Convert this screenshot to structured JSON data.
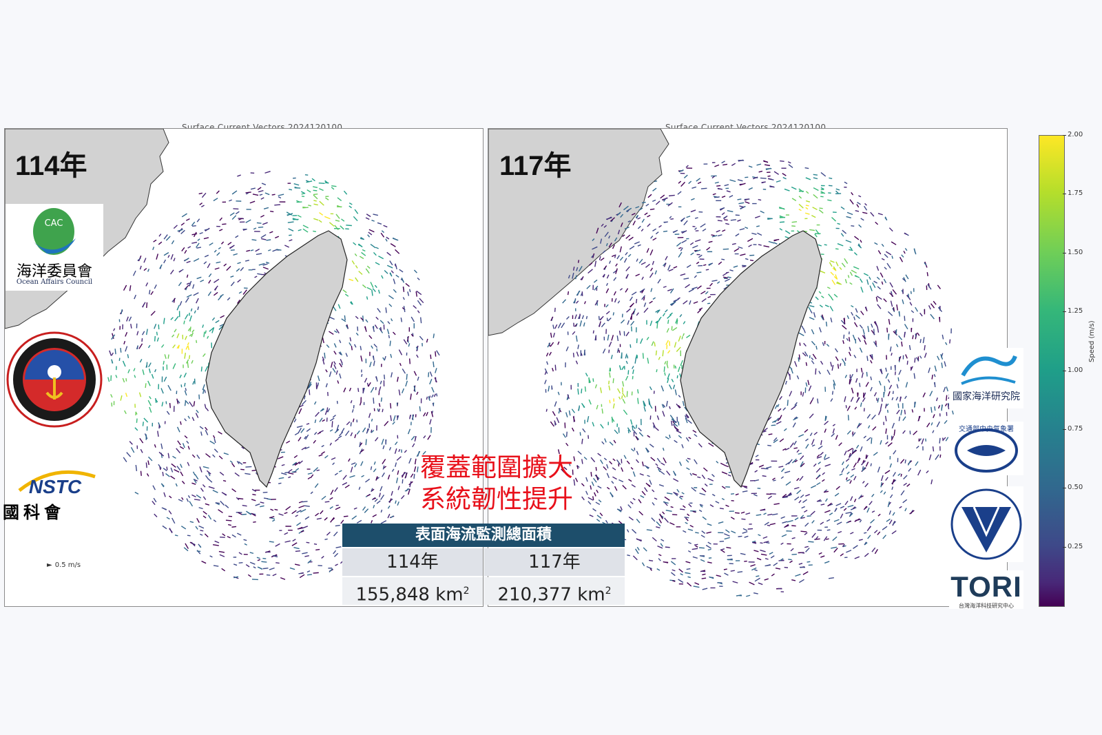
{
  "maps": {
    "left": {
      "title": "Surface Current Vectors 2024120100",
      "year": "114年"
    },
    "right": {
      "title": "Surface Current Vectors 2024120100",
      "year": "117年"
    }
  },
  "logos": {
    "oac": {
      "emblem": "CAC",
      "name_zh": "海洋委員會",
      "name_en": "Ocean Affairs Council"
    },
    "cga": {
      "icon": "coast-guard-emblem"
    },
    "nstc": {
      "abbr": "NSTC",
      "name_zh": "國科會"
    },
    "nari": {
      "name_zh": "國家海洋研究院"
    },
    "cwa": {
      "name_zh": "交通部中央氣象署"
    },
    "cwb": {
      "icon": "inverted-triangle-emblem"
    },
    "tori": {
      "abbr": "TORI",
      "name_zh": "台灣海洋科技研究中心"
    }
  },
  "scale_legend": {
    "label": "0.5 m/s"
  },
  "headline": {
    "line1": "覆蓋範圍擴大",
    "line2": "系統韌性提升"
  },
  "area_table": {
    "title": "表面海流監測總面積",
    "headers": [
      "114年",
      "117年"
    ],
    "values": [
      "155,848  km",
      "210,377 km"
    ],
    "unit_sup": "2"
  },
  "colorbar": {
    "label": "Speed (m/s)",
    "ticks": [
      "2.00",
      "1.75",
      "1.50",
      "1.25",
      "1.00",
      "0.75",
      "0.50",
      "0.25"
    ],
    "tick_values": [
      2.0,
      1.75,
      1.5,
      1.25,
      1.0,
      0.75,
      0.5,
      0.25
    ],
    "range": [
      0,
      2.0
    ],
    "colormap": "viridis"
  },
  "colors": {
    "land": "#d2d2d2",
    "headline": "#e8101a",
    "table_header": "#1d4e6b"
  }
}
